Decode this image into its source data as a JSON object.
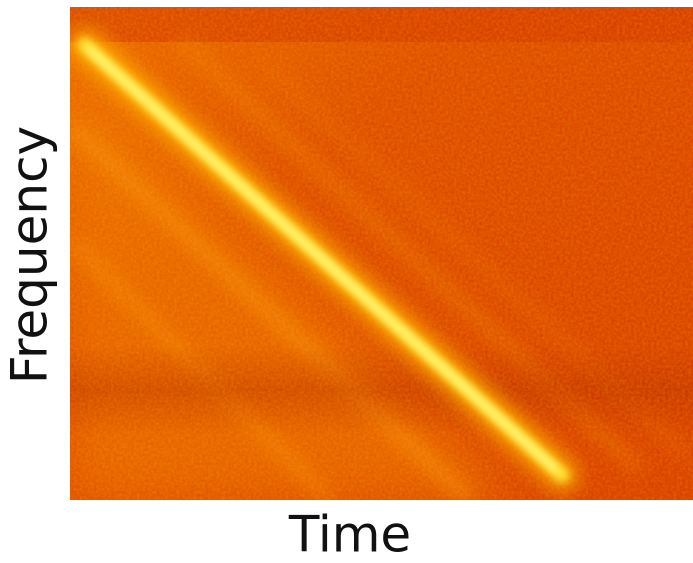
{
  "chart_data": {
    "type": "spectrogram",
    "xlabel": "Time",
    "ylabel": "Frequency"
  }
}
